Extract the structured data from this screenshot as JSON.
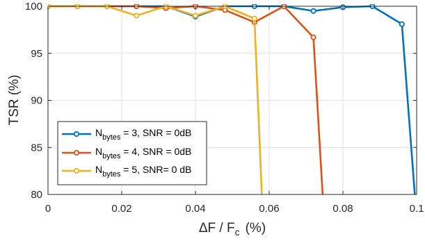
{
  "chart_data": {
    "type": "line",
    "xlabel": "ΔF / F",
    "xlabel_sub": "c",
    "xlabel_unit": "(%)",
    "ylabel": "TSR  (%)",
    "xlim": [
      0,
      0.1
    ],
    "ylim": [
      80,
      100
    ],
    "xticks": [
      0,
      0.02,
      0.04,
      0.06,
      0.08,
      0.1
    ],
    "xtick_labels": [
      "0",
      "0.02",
      "0.04",
      "0.06",
      "0.08",
      "0.1"
    ],
    "yticks": [
      80,
      85,
      90,
      95,
      100
    ],
    "ytick_labels": [
      "80",
      "85",
      "90",
      "95",
      "100"
    ],
    "grid": true,
    "legend_position": "lower-left",
    "series": [
      {
        "name": "N_bytes = 3, SNR = 0dB",
        "legend_base": "N",
        "legend_sub": "bytes",
        "legend_rest": " = 3, SNR = 0dB",
        "color": "#0072BD",
        "x": [
          0,
          0.008,
          0.016,
          0.024,
          0.032,
          0.04,
          0.048,
          0.056,
          0.064,
          0.072,
          0.08,
          0.088,
          0.096,
          0.0995
        ],
        "y": [
          100,
          100,
          100,
          100,
          100,
          98.9,
          100,
          100,
          100,
          99.5,
          99.9,
          100,
          98.1,
          80
        ]
      },
      {
        "name": "N_bytes = 4, SNR = 0dB",
        "legend_base": "N",
        "legend_sub": "bytes",
        "legend_rest": " = 4, SNR = 0dB",
        "color": "#D95319",
        "x": [
          0,
          0.008,
          0.016,
          0.024,
          0.032,
          0.04,
          0.048,
          0.056,
          0.064,
          0.072,
          0.0745
        ],
        "y": [
          100,
          100,
          100,
          100,
          99.8,
          100,
          99.6,
          98.3,
          100,
          96.7,
          80
        ]
      },
      {
        "name": "N_bytes = 5, SNR= 0 dB",
        "legend_base": "N",
        "legend_sub": "bytes",
        "legend_rest": " = 5, SNR= 0 dB",
        "color": "#EDB120",
        "x": [
          0,
          0.008,
          0.016,
          0.024,
          0.032,
          0.04,
          0.048,
          0.056,
          0.058
        ],
        "y": [
          100,
          100,
          100,
          99,
          100,
          99,
          100,
          98.7,
          80
        ]
      }
    ]
  }
}
